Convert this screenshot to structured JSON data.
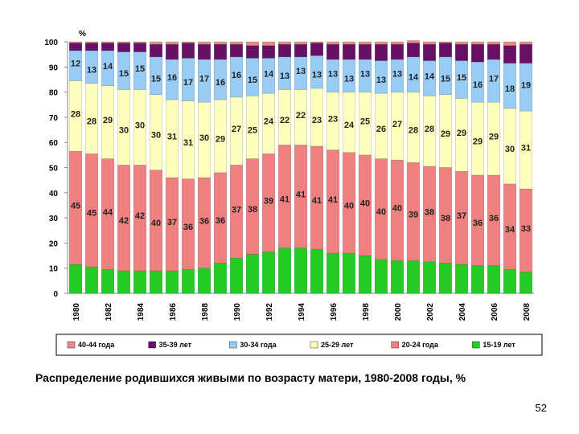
{
  "caption": "Распределение родившихся живыми по возрасту матери, 1980-2008 годы, %",
  "page_number": "52",
  "chart_data": {
    "type": "bar",
    "stacked": true,
    "unit_label": "%",
    "ylim": [
      0,
      100
    ],
    "y_ticks": [
      0,
      10,
      20,
      30,
      40,
      50,
      60,
      70,
      80,
      90,
      100
    ],
    "x_tick_labels": [
      "1980",
      "1982",
      "1984",
      "1986",
      "1988",
      "1990",
      "1992",
      "1994",
      "1996",
      "1998",
      "2000",
      "2002",
      "2004",
      "2006",
      "2008"
    ],
    "categories": [
      "1980",
      "1981",
      "1982",
      "1983",
      "1984",
      "1985",
      "1986",
      "1987",
      "1988",
      "1989",
      "1990",
      "1991",
      "1992",
      "1993",
      "1994",
      "1995",
      "1996",
      "1997",
      "1998",
      "1999",
      "2000",
      "2001",
      "2002",
      "2003",
      "2004",
      "2005",
      "2006",
      "2007",
      "2008"
    ],
    "legend_position": "bottom",
    "series": [
      {
        "name": "15-19 лет",
        "color": "#22cc22",
        "values": [
          11.5,
          10.5,
          9.5,
          9,
          9,
          9,
          9,
          9.5,
          10,
          12,
          14,
          15.5,
          16.5,
          18,
          18,
          17.5,
          16,
          16,
          15,
          13.5,
          13,
          13,
          12.5,
          12,
          11.5,
          11,
          11,
          9.5,
          8.5
        ],
        "labels": [
          null,
          null,
          null,
          null,
          null,
          null,
          null,
          null,
          null,
          null,
          null,
          null,
          null,
          null,
          null,
          null,
          null,
          null,
          null,
          null,
          null,
          null,
          null,
          null,
          null,
          null,
          null,
          null,
          null
        ]
      },
      {
        "name": "20-24 года",
        "color": "#f08080",
        "values": [
          45,
          45,
          44,
          42,
          42,
          40,
          37,
          36,
          36,
          36,
          37,
          38,
          39,
          41,
          41,
          41,
          41,
          40,
          40,
          40,
          40,
          39,
          38,
          38,
          37,
          36,
          36,
          34,
          33
        ],
        "labels": [
          "45",
          "45",
          "44",
          "42",
          "42",
          "40",
          "37",
          "36",
          "36",
          "36",
          "37",
          "38",
          "39",
          "41",
          "41",
          "41",
          "41",
          "40",
          "40",
          "40",
          "40",
          "39",
          "38",
          "38",
          "37",
          "36",
          "36",
          "34",
          "33"
        ]
      },
      {
        "name": "25-29 лет",
        "color": "#ffffbb",
        "values": [
          28,
          28,
          29,
          30,
          30,
          30,
          31,
          31,
          30,
          29,
          27,
          25,
          24,
          22,
          22,
          23,
          23,
          24,
          25,
          26,
          27,
          28,
          28,
          29,
          29,
          29,
          29,
          30,
          31
        ],
        "labels": [
          "28",
          "28",
          "29",
          "30",
          "30",
          "30",
          "31",
          "31",
          "30",
          "29",
          "27",
          "25",
          "24",
          "22",
          "22",
          "23",
          "23",
          "24",
          "25",
          "26",
          "27",
          "28",
          "28",
          "29",
          "29",
          "29",
          "29",
          "30",
          "31"
        ]
      },
      {
        "name": "30-34 года",
        "color": "#99ccf5",
        "values": [
          12,
          13,
          14,
          15,
          15,
          15,
          16,
          17,
          17,
          16,
          16,
          15,
          14,
          13,
          13,
          13,
          13,
          13,
          13,
          13,
          13,
          14,
          14,
          15,
          15,
          16,
          17,
          18,
          19
        ],
        "labels": [
          "12",
          "13",
          "14",
          "15",
          "15",
          "15",
          "16",
          "17",
          "17",
          "16",
          "16",
          "15",
          "14",
          "13",
          "13",
          "13",
          "13",
          "13",
          "13",
          "13",
          "13",
          "14",
          "14",
          "15",
          "15",
          "16",
          "17",
          "18",
          "19"
        ]
      },
      {
        "name": "35-39 лет",
        "color": "#661166",
        "values": [
          3,
          3,
          3,
          3.5,
          3.5,
          5,
          6,
          6,
          6,
          6,
          5,
          5,
          5,
          5,
          5,
          5,
          6,
          6,
          6,
          6.5,
          6,
          5.5,
          6.5,
          5.5,
          6.5,
          7,
          6,
          7,
          7.5
        ],
        "labels": [
          null,
          null,
          null,
          null,
          null,
          null,
          null,
          null,
          null,
          null,
          null,
          null,
          null,
          null,
          null,
          null,
          null,
          null,
          null,
          null,
          null,
          null,
          null,
          null,
          null,
          null,
          null,
          null,
          null
        ]
      },
      {
        "name": "40-44 года",
        "color": "#ee8888",
        "values": [
          0.5,
          0.5,
          0.5,
          0.5,
          0.5,
          1,
          1,
          0.5,
          1,
          1,
          1,
          1.5,
          1.5,
          1,
          1,
          0.5,
          1,
          1,
          1,
          1,
          1,
          1,
          1,
          0.5,
          1,
          1,
          1,
          1.5,
          1
        ],
        "labels": [
          null,
          null,
          null,
          null,
          null,
          null,
          null,
          null,
          null,
          null,
          null,
          null,
          null,
          null,
          null,
          null,
          null,
          null,
          null,
          null,
          null,
          null,
          null,
          null,
          null,
          null,
          null,
          null,
          null
        ]
      }
    ],
    "legend_order": [
      "40-44 года",
      "35-39 лет",
      "30-34 года",
      "25-29 лет",
      "20-24 года",
      "15-19 лет"
    ]
  }
}
